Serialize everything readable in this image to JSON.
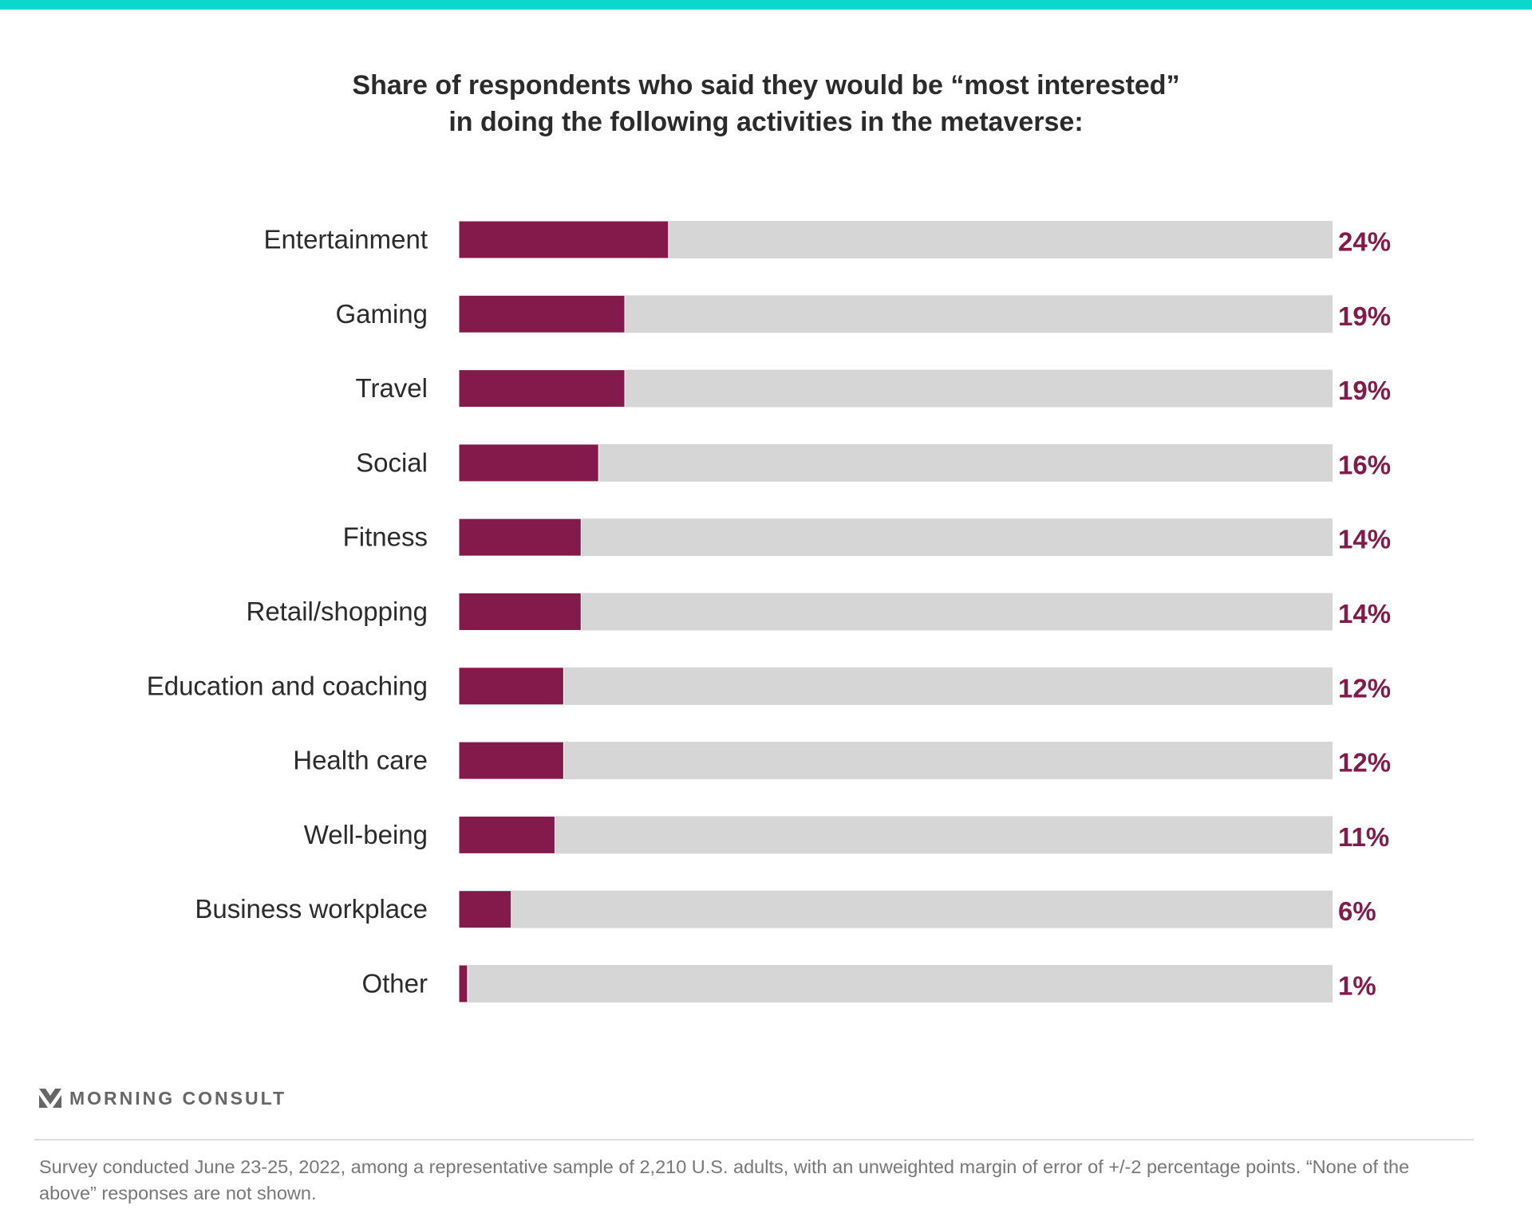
{
  "colors": {
    "accent_stripe": "#0dd6cc",
    "bar": "#841a4b",
    "track": "#d6d6d6",
    "value_label": "#841a4b"
  },
  "chart_data": {
    "type": "bar",
    "orientation": "horizontal",
    "title_lines": [
      "Share of respondents who said they would be “most interested”",
      "in doing the following activities in the metaverse:"
    ],
    "categories": [
      "Entertainment",
      "Gaming",
      "Travel",
      "Social",
      "Fitness",
      "Retail/shopping",
      "Education and coaching",
      "Health care",
      "Well-being",
      "Business workplace",
      "Other"
    ],
    "values": [
      24,
      19,
      19,
      16,
      14,
      14,
      12,
      12,
      11,
      6,
      1
    ],
    "value_labels": [
      "24%",
      "19%",
      "19%",
      "16%",
      "14%",
      "14%",
      "12%",
      "12%",
      "11%",
      "6%",
      "1%"
    ],
    "xlim": [
      0,
      100
    ],
    "grid": false
  },
  "footer": {
    "logo_text": "MORNING CONSULT",
    "note": "Survey conducted June 23-25, 2022, among a representative sample of 2,210 U.S. adults, with an unweighted margin of error of +/-2 percentage points. “None of the above” responses are not shown."
  }
}
